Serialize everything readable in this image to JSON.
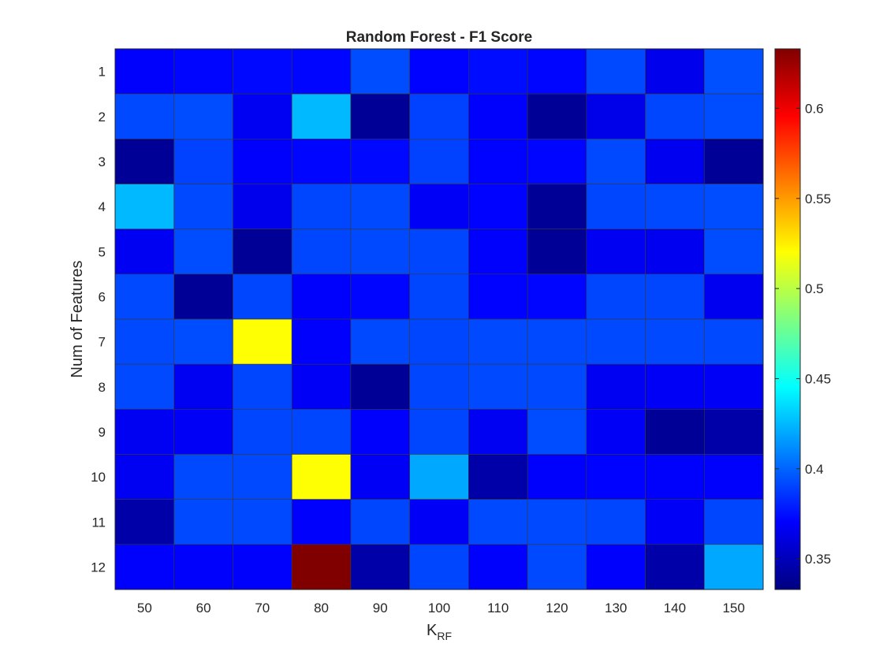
{
  "chart_data": {
    "type": "heatmap",
    "title": "Random Forest - F1 Score",
    "xlabel_main": "K",
    "xlabel_sub": "RF",
    "ylabel": "Num of Features",
    "x_categories": [
      "50",
      "60",
      "70",
      "80",
      "90",
      "100",
      "110",
      "120",
      "130",
      "140",
      "150"
    ],
    "y_categories": [
      "1",
      "2",
      "3",
      "4",
      "5",
      "6",
      "7",
      "8",
      "9",
      "10",
      "11",
      "12"
    ],
    "values": [
      [
        0.37,
        0.372,
        0.373,
        0.372,
        0.393,
        0.371,
        0.374,
        0.372,
        0.392,
        0.365,
        0.394
      ],
      [
        0.392,
        0.393,
        0.367,
        0.425,
        0.34,
        0.39,
        0.37,
        0.34,
        0.364,
        0.391,
        0.393
      ],
      [
        0.34,
        0.39,
        0.37,
        0.372,
        0.373,
        0.39,
        0.371,
        0.372,
        0.392,
        0.366,
        0.34
      ],
      [
        0.425,
        0.392,
        0.365,
        0.391,
        0.392,
        0.368,
        0.371,
        0.34,
        0.391,
        0.392,
        0.393
      ],
      [
        0.367,
        0.393,
        0.34,
        0.391,
        0.392,
        0.391,
        0.37,
        0.34,
        0.367,
        0.366,
        0.393
      ],
      [
        0.392,
        0.34,
        0.391,
        0.37,
        0.372,
        0.391,
        0.371,
        0.372,
        0.391,
        0.391,
        0.366
      ],
      [
        0.392,
        0.393,
        0.52,
        0.37,
        0.392,
        0.391,
        0.392,
        0.392,
        0.392,
        0.392,
        0.392
      ],
      [
        0.392,
        0.367,
        0.391,
        0.368,
        0.34,
        0.391,
        0.392,
        0.392,
        0.367,
        0.368,
        0.368
      ],
      [
        0.367,
        0.368,
        0.391,
        0.391,
        0.37,
        0.391,
        0.367,
        0.393,
        0.368,
        0.34,
        0.345
      ],
      [
        0.367,
        0.392,
        0.392,
        0.52,
        0.368,
        0.42,
        0.345,
        0.37,
        0.371,
        0.37,
        0.37
      ],
      [
        0.345,
        0.392,
        0.392,
        0.37,
        0.391,
        0.368,
        0.392,
        0.392,
        0.391,
        0.368,
        0.391
      ],
      [
        0.37,
        0.37,
        0.37,
        0.633,
        0.345,
        0.391,
        0.37,
        0.392,
        0.37,
        0.345,
        0.42
      ]
    ],
    "colormap": "jet",
    "color_range": [
      0.333,
      0.633
    ],
    "colorbar_ticks": [
      0.35,
      0.4,
      0.45,
      0.5,
      0.55,
      0.6
    ],
    "colorbar_tick_labels": [
      "0.35",
      "0.4",
      "0.45",
      "0.5",
      "0.55",
      "0.6"
    ]
  }
}
